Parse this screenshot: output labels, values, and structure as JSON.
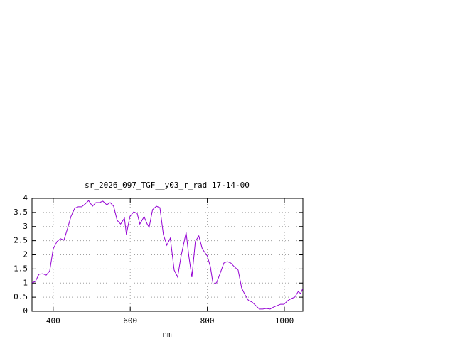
{
  "chart_data": {
    "type": "line",
    "title": "sr_2026_097_TGF__y03_r_rad 17-14-00",
    "x_label": "nm",
    "x": [
      345,
      354,
      363,
      373,
      382,
      391,
      400,
      410,
      419,
      428,
      437,
      446,
      456,
      465,
      474,
      483,
      492,
      502,
      511,
      520,
      529,
      539,
      548,
      557,
      566,
      575,
      585,
      590,
      599,
      609,
      618,
      625,
      636,
      644,
      649,
      658,
      668,
      677,
      686,
      695,
      704,
      714,
      723,
      732,
      745,
      752,
      760,
      769,
      778,
      787,
      800,
      808,
      815,
      824,
      833,
      843,
      852,
      861,
      870,
      880,
      889,
      898,
      907,
      916,
      926,
      935,
      944,
      953,
      963,
      972,
      981,
      990,
      999,
      1009,
      1018,
      1027,
      1036,
      1042,
      1047
    ],
    "series": [
      {
        "color": "#9400d3",
        "values": [
          1.01,
          1.06,
          1.31,
          1.33,
          1.28,
          1.43,
          2.21,
          2.47,
          2.57,
          2.52,
          2.92,
          3.35,
          3.65,
          3.7,
          3.7,
          3.8,
          3.92,
          3.72,
          3.85,
          3.85,
          3.9,
          3.77,
          3.85,
          3.72,
          3.22,
          3.09,
          3.3,
          2.72,
          3.35,
          3.52,
          3.47,
          3.09,
          3.35,
          3.09,
          2.97,
          3.6,
          3.72,
          3.67,
          2.72,
          2.34,
          2.59,
          1.46,
          1.21,
          1.96,
          2.79,
          1.96,
          1.21,
          2.47,
          2.67,
          2.21,
          1.96,
          1.58,
          0.96,
          1.01,
          1.33,
          1.71,
          1.76,
          1.71,
          1.58,
          1.46,
          0.83,
          0.58,
          0.38,
          0.33,
          0.2,
          0.08,
          0.08,
          0.1,
          0.08,
          0.15,
          0.2,
          0.25,
          0.25,
          0.38,
          0.45,
          0.5,
          0.7,
          0.63,
          0.78
        ]
      }
    ],
    "xlim": [
      345,
      1048
    ],
    "xticks": [
      400,
      600,
      800,
      1000
    ],
    "ylim": [
      0,
      4
    ],
    "yticks": [
      0,
      0.5,
      1,
      1.5,
      2,
      2.5,
      3,
      3.5,
      4
    ],
    "grid": true
  }
}
